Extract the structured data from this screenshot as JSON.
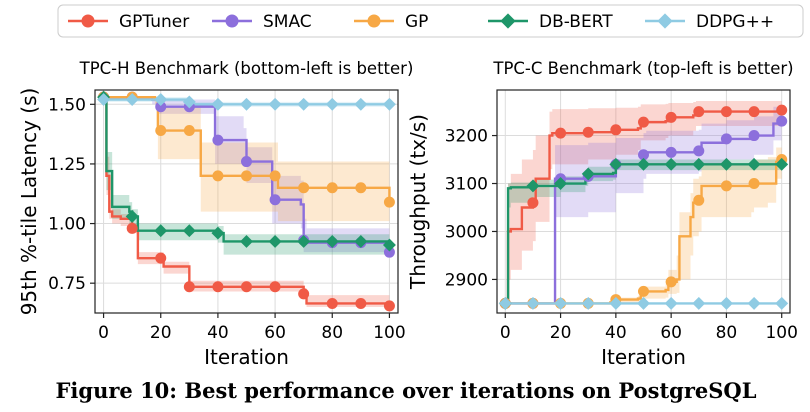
{
  "legend": {
    "placement": "top-center",
    "entries": [
      {
        "name": "GPTuner",
        "color": "#f05a46",
        "marker": "circle"
      },
      {
        "name": "SMAC",
        "color": "#8c6fdc",
        "marker": "circle"
      },
      {
        "name": "GP",
        "color": "#f7a845",
        "marker": "circle"
      },
      {
        "name": "DB-BERT",
        "color": "#1e9669",
        "marker": "diamond"
      },
      {
        "name": "DDPG++",
        "color": "#8fcbe3",
        "marker": "diamond"
      }
    ]
  },
  "caption": "Figure 10: Best performance over iterations on PostgreSQL",
  "chart_data": [
    {
      "type": "line",
      "title": "TPC-H Benchmark (bottom-left is better)",
      "xlabel": "Iteration",
      "ylabel": "95th %-tile Latency (s)",
      "xlim": [
        -3,
        103
      ],
      "ylim": [
        0.625,
        1.56
      ],
      "xticks": [
        0,
        20,
        40,
        60,
        80,
        100
      ],
      "yticks": [
        0.75,
        1.0,
        1.25,
        1.5
      ],
      "ytick_labels": [
        "0.75",
        "1.00",
        "1.25",
        "1.50"
      ],
      "grid": true,
      "step": true,
      "marker_every": 10,
      "series": [
        {
          "name": "GPTuner",
          "color": "#f05a46",
          "x": [
            0,
            1,
            2,
            3,
            6,
            10,
            12,
            20,
            21,
            29,
            30,
            70,
            71,
            100
          ],
          "y": [
            1.53,
            1.2,
            1.05,
            1.03,
            1.02,
            0.98,
            0.855,
            0.855,
            0.82,
            0.82,
            0.735,
            0.705,
            0.665,
            0.655
          ],
          "band_upper": [
            1.53,
            1.28,
            1.1,
            1.06,
            1.04,
            1.0,
            0.88,
            0.88,
            0.84,
            0.84,
            0.76,
            0.73,
            0.7,
            0.69
          ],
          "band_lower": [
            1.53,
            1.12,
            1.02,
            1.0,
            0.99,
            0.96,
            0.83,
            0.83,
            0.79,
            0.79,
            0.715,
            0.685,
            0.65,
            0.64
          ]
        },
        {
          "name": "SMAC",
          "color": "#8c6fdc",
          "x": [
            0,
            17,
            19,
            38,
            39,
            49,
            50,
            58,
            59,
            69,
            70,
            71,
            100
          ],
          "y": [
            1.53,
            1.52,
            1.49,
            1.49,
            1.35,
            1.35,
            1.26,
            1.26,
            1.1,
            1.08,
            0.93,
            0.92,
            0.88
          ],
          "band_upper": [
            1.53,
            1.53,
            1.52,
            1.52,
            1.45,
            1.4,
            1.32,
            1.32,
            1.2,
            1.18,
            1.02,
            0.98,
            0.95
          ],
          "band_lower": [
            1.53,
            1.5,
            1.46,
            1.46,
            1.25,
            1.25,
            1.17,
            1.17,
            1.0,
            0.98,
            0.88,
            0.88,
            0.86
          ]
        },
        {
          "name": "GP",
          "color": "#f7a845",
          "x": [
            0,
            18,
            19,
            33,
            34,
            60,
            61,
            100
          ],
          "y": [
            1.53,
            1.52,
            1.39,
            1.39,
            1.2,
            1.2,
            1.15,
            1.09
          ],
          "band_upper": [
            1.53,
            1.53,
            1.49,
            1.49,
            1.34,
            1.34,
            1.26,
            1.2
          ],
          "band_lower": [
            1.53,
            1.5,
            1.27,
            1.27,
            1.05,
            1.05,
            1.01,
            0.96
          ]
        },
        {
          "name": "DB-BERT",
          "color": "#1e9669",
          "x": [
            0,
            1,
            3,
            9,
            10,
            12,
            40,
            42,
            100
          ],
          "y": [
            1.53,
            1.22,
            1.07,
            1.05,
            1.03,
            0.97,
            0.96,
            0.925,
            0.91
          ],
          "band_upper": [
            1.53,
            1.3,
            1.12,
            1.09,
            1.06,
            1.0,
            0.99,
            0.955,
            0.94
          ],
          "band_lower": [
            1.53,
            1.14,
            1.02,
            1.0,
            0.98,
            0.93,
            0.92,
            0.87,
            0.86
          ]
        },
        {
          "name": "DDPG++",
          "color": "#8fcbe3",
          "x": [
            0,
            30,
            31,
            100
          ],
          "y": [
            1.52,
            1.51,
            1.5,
            1.5
          ],
          "band_upper": [
            1.53,
            1.52,
            1.51,
            1.51
          ],
          "band_lower": [
            1.51,
            1.5,
            1.49,
            1.49
          ]
        }
      ]
    },
    {
      "type": "line",
      "title": "TPC-C Benchmark (top-left is better)",
      "xlabel": "Iteration",
      "ylabel": "Throughput (tx/s)",
      "xlim": [
        -3,
        103
      ],
      "ylim": [
        2830,
        3295
      ],
      "xticks": [
        0,
        20,
        40,
        60,
        80,
        100
      ],
      "yticks": [
        2900,
        3000,
        3100,
        3200
      ],
      "ytick_labels": [
        "2900",
        "3000",
        "3100",
        "3200"
      ],
      "grid": true,
      "step": true,
      "marker_every": 10,
      "series": [
        {
          "name": "GPTuner",
          "color": "#f05a46",
          "x": [
            0,
            1,
            2,
            6,
            10,
            11,
            16,
            17,
            30,
            39,
            40,
            48,
            49,
            58,
            59,
            68,
            69,
            100
          ],
          "y": [
            2850,
            3000,
            3005,
            3050,
            3060,
            3110,
            3200,
            3205,
            3207,
            3207,
            3212,
            3215,
            3228,
            3230,
            3238,
            3242,
            3250,
            3253
          ],
          "band_upper": [
            2850,
            3100,
            3120,
            3150,
            3170,
            3200,
            3250,
            3255,
            3257,
            3257,
            3258,
            3260,
            3265,
            3266,
            3268,
            3270,
            3272,
            3274
          ],
          "band_lower": [
            2850,
            2900,
            2920,
            2960,
            2980,
            3020,
            3130,
            3140,
            3150,
            3150,
            3160,
            3170,
            3190,
            3195,
            3200,
            3210,
            3220,
            3228
          ]
        },
        {
          "name": "SMAC",
          "color": "#8c6fdc",
          "x": [
            0,
            17,
            18,
            29,
            30,
            40,
            50,
            51,
            70,
            71,
            80,
            90,
            97,
            100
          ],
          "y": [
            2850,
            2850,
            3110,
            3110,
            3115,
            3140,
            3160,
            3165,
            3168,
            3185,
            3193,
            3200,
            3225,
            3230
          ],
          "band_upper": [
            2850,
            2850,
            3180,
            3180,
            3185,
            3195,
            3205,
            3210,
            3212,
            3225,
            3232,
            3240,
            3260,
            3262
          ],
          "band_lower": [
            2850,
            2850,
            3030,
            3030,
            3040,
            3080,
            3110,
            3120,
            3125,
            3140,
            3150,
            3160,
            3190,
            3195
          ]
        },
        {
          "name": "GP",
          "color": "#f7a845",
          "x": [
            0,
            38,
            39,
            48,
            49,
            58,
            59,
            62,
            63,
            67,
            68,
            70,
            71,
            89,
            90,
            95,
            98,
            100
          ],
          "y": [
            2850,
            2852,
            2858,
            2860,
            2875,
            2878,
            2895,
            2900,
            2990,
            3030,
            3060,
            3065,
            3095,
            3095,
            3100,
            3100,
            3145,
            3150
          ],
          "band_upper": [
            2852,
            2854,
            2862,
            2866,
            2885,
            2890,
            2920,
            2950,
            3040,
            3080,
            3110,
            3115,
            3140,
            3145,
            3150,
            3155,
            3175,
            3180
          ],
          "band_lower": [
            2848,
            2850,
            2852,
            2853,
            2860,
            2862,
            2870,
            2872,
            2900,
            2950,
            2990,
            3000,
            3030,
            3040,
            3050,
            3060,
            3110,
            3115
          ]
        },
        {
          "name": "DB-BERT",
          "color": "#1e9669",
          "x": [
            0,
            1,
            2,
            9,
            10,
            20,
            29,
            30,
            39,
            40,
            100
          ],
          "y": [
            2850,
            3090,
            3092,
            3092,
            3095,
            3100,
            3110,
            3120,
            3122,
            3140,
            3140
          ],
          "band_upper": [
            2850,
            3100,
            3102,
            3104,
            3108,
            3115,
            3125,
            3135,
            3140,
            3150,
            3152
          ],
          "band_lower": [
            2850,
            3050,
            3060,
            3065,
            3072,
            3082,
            3095,
            3105,
            3108,
            3128,
            3128
          ]
        },
        {
          "name": "DDPG++",
          "color": "#8fcbe3",
          "x": [
            0,
            100
          ],
          "y": [
            2850,
            2850
          ]
        }
      ]
    }
  ]
}
